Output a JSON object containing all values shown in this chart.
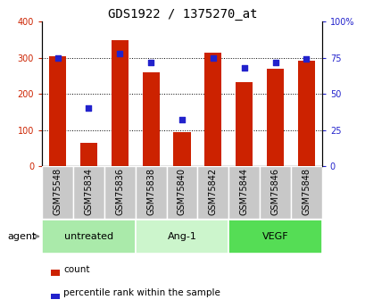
{
  "title": "GDS1922 / 1375270_at",
  "categories": [
    "GSM75548",
    "GSM75834",
    "GSM75836",
    "GSM75838",
    "GSM75840",
    "GSM75842",
    "GSM75844",
    "GSM75846",
    "GSM75848"
  ],
  "red_values": [
    305,
    65,
    348,
    260,
    95,
    315,
    233,
    270,
    293
  ],
  "blue_pct": [
    75,
    40,
    78,
    72,
    32,
    75,
    68,
    72,
    74
  ],
  "groups": [
    {
      "label": "untreated",
      "indices": [
        0,
        1,
        2
      ],
      "color": "#aaeaaa"
    },
    {
      "label": "Ang-1",
      "indices": [
        3,
        4,
        5
      ],
      "color": "#ccf5cc"
    },
    {
      "label": "VEGF",
      "indices": [
        6,
        7,
        8
      ],
      "color": "#55dd55"
    }
  ],
  "ylim_left": [
    0,
    400
  ],
  "ylim_right": [
    0,
    100
  ],
  "yticks_left": [
    0,
    100,
    200,
    300,
    400
  ],
  "yticks_right": [
    0,
    25,
    50,
    75,
    100
  ],
  "yticklabels_left": [
    "0",
    "100",
    "200",
    "300",
    "400"
  ],
  "yticklabels_right": [
    "0",
    "25",
    "50",
    "75",
    "100%"
  ],
  "bar_color": "#cc2200",
  "dot_color": "#2222cc",
  "bar_width": 0.55,
  "agent_label": "agent",
  "legend_count": "count",
  "legend_pct": "percentile rank within the sample",
  "title_fontsize": 10,
  "tick_fontsize": 7,
  "xtick_fontsize": 7,
  "group_fontsize": 8,
  "legend_fontsize": 7.5
}
